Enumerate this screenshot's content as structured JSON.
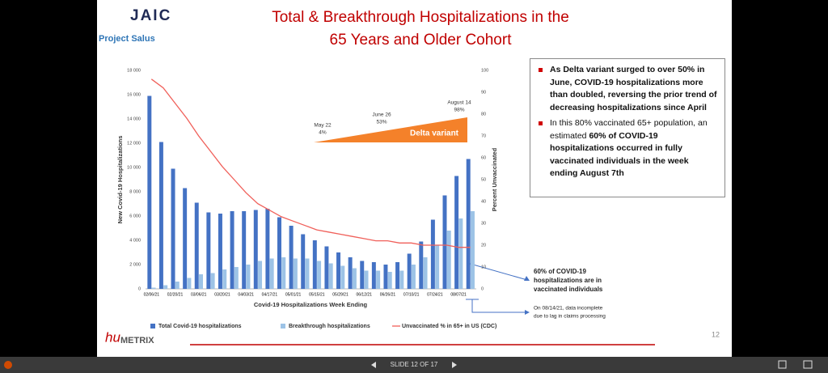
{
  "header": {
    "logo": "JAIC",
    "subtitle": "Project Salus",
    "title_lines": [
      "Total & Breakthrough Hospitalizations in the",
      "65 Years and Older Cohort"
    ]
  },
  "chart_data": {
    "type": "bar",
    "x_label": "Covid-19 Hospitalizations Week Ending",
    "y_label": "New Covid-19 Hospitalizations",
    "y2_label": "Percent Unvaccinated",
    "categories": [
      "02/06/21",
      null,
      "02/20/21",
      null,
      "03/06/21",
      null,
      "03/20/21",
      null,
      "04/03/21",
      null,
      "04/17/21",
      null,
      "05/01/21",
      null,
      "05/15/21",
      null,
      "05/29/21",
      null,
      "06/12/21",
      null,
      "06/26/21",
      null,
      "07/10/21",
      null,
      "07/24/21",
      null,
      "08/07/21",
      null
    ],
    "series": [
      {
        "name": "Total Covid-19 hospitalizations",
        "color": "#4472c4",
        "type": "bar",
        "values": [
          15900,
          12100,
          9900,
          8300,
          7100,
          6300,
          6200,
          6400,
          6400,
          6500,
          6600,
          5900,
          5200,
          4500,
          4000,
          3500,
          3000,
          2600,
          2300,
          2200,
          2000,
          2200,
          2900,
          3900,
          5700,
          7700,
          9300,
          10700
        ]
      },
      {
        "name": "Breakthrough hospitalizations",
        "color": "#9dc3e6",
        "type": "bar",
        "values": [
          100,
          300,
          600,
          900,
          1200,
          1300,
          1600,
          1800,
          2000,
          2300,
          2500,
          2600,
          2500,
          2500,
          2300,
          2100,
          1900,
          1700,
          1500,
          1500,
          1400,
          1500,
          2000,
          2600,
          3600,
          4800,
          5800,
          6400
        ]
      },
      {
        "name": "Unvaccinated % in 65+ in US (CDC)",
        "color": "#f0605a",
        "type": "line",
        "axis": "y2",
        "values": [
          96,
          92,
          85,
          78,
          70,
          63,
          56,
          50,
          44,
          39,
          36,
          33,
          31,
          29,
          27,
          26,
          25,
          24,
          23,
          22,
          22,
          21,
          21,
          20,
          20,
          20,
          19,
          19
        ]
      }
    ],
    "ylim": [
      0,
      18000
    ],
    "yticks": [
      0,
      {
        "value": 2000,
        "label": "2 000"
      },
      {
        "value": 4000,
        "label": "4 000"
      },
      {
        "value": 6000,
        "label": "6 000"
      },
      {
        "value": 8000,
        "label": "8 000"
      },
      {
        "value": 10000,
        "label": "10 000"
      },
      {
        "value": 12000,
        "label": "12 000"
      },
      {
        "value": 14000,
        "label": "14 000"
      },
      {
        "value": 16000,
        "label": "16 000"
      },
      {
        "value": 18000,
        "label": "18 000"
      }
    ],
    "y2lim": [
      0,
      100
    ],
    "y2ticks": [
      0,
      10,
      20,
      30,
      40,
      50,
      60,
      70,
      80,
      90,
      100
    ],
    "grid": false,
    "legend": "bottom",
    "delta": {
      "label": "Delta variant",
      "color": "#f4812a",
      "points": [
        {
          "date": "May 22",
          "percent": "4%"
        },
        {
          "date": "June 26",
          "percent": "53%"
        },
        {
          "date": "August 14",
          "percent": "98%"
        }
      ]
    },
    "callouts": [
      [
        "60% of COVID-19",
        "hospitalizations are in",
        "vaccinated individuals"
      ],
      [
        "On 08/14/21, data incomplete",
        "due to lag in claims processing"
      ]
    ]
  },
  "bullets": [
    [
      {
        "text": "As Delta variant surged to over 50% in June, COVID-19 hospitalizations more than doubled, reversing the prior trend of decreasing hospitalizations since April",
        "bold": true
      }
    ],
    [
      {
        "text": "In this 80% vaccinated 65+ population, an estimated ",
        "bold": false
      },
      {
        "text": "60% of COVID-19 hospitalizations occurred in fully vaccinated individuals in the week ending August 7th",
        "bold": true
      }
    ]
  ],
  "footer": {
    "logo_red": "hu",
    "logo_gray": "METRIX",
    "page_number": "12"
  },
  "viewer": {
    "slide_indicator": "SLIDE 12 OF 17"
  }
}
